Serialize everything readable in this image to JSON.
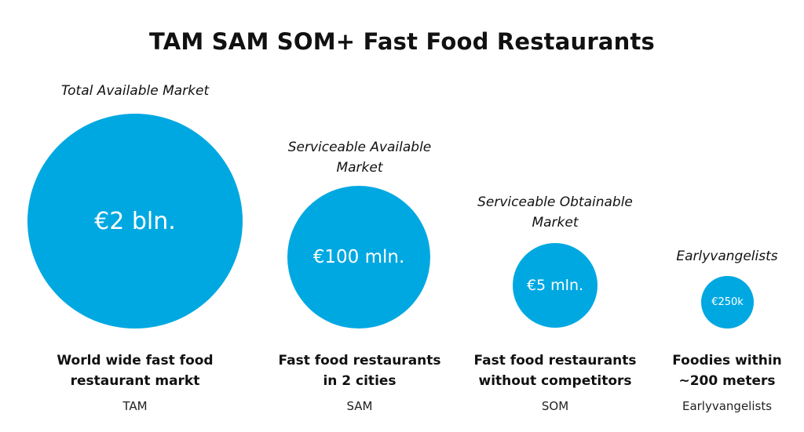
{
  "title": "TAM SAM SOM+ Fast Food Restaurants",
  "accent_color": "#00a8e1",
  "markets": [
    {
      "label_lines": [
        "Total Available Market"
      ],
      "value": "€2 bln.",
      "description_lines": [
        "World wide fast food",
        "restaurant markt"
      ],
      "abbreviation": "TAM"
    },
    {
      "label_lines": [
        "Serviceable Available",
        "Market"
      ],
      "value": "€100 mln.",
      "description_lines": [
        "Fast food restaurants",
        "in 2 cities"
      ],
      "abbreviation": "SAM"
    },
    {
      "label_lines": [
        "Serviceable Obtainable",
        "Market"
      ],
      "value": "€5 mln.",
      "description_lines": [
        "Fast food restaurants",
        "without competitors"
      ],
      "abbreviation": "SOM"
    },
    {
      "label_lines": [
        "Earlyvangelists"
      ],
      "value": "€250k",
      "description_lines": [
        "Foodies within",
        "~200 meters"
      ],
      "abbreviation": "Earlyvangelists"
    }
  ]
}
